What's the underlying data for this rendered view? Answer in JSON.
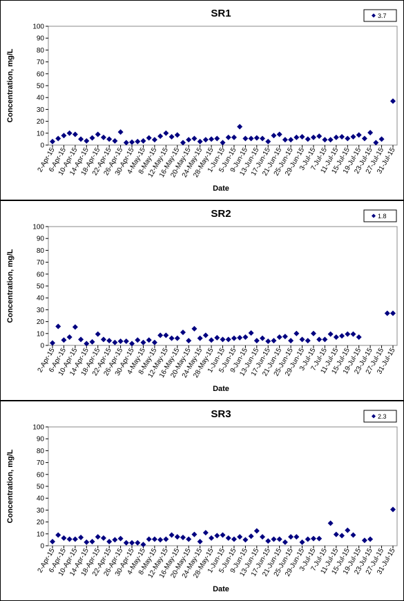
{
  "chart_data": [
    {
      "type": "scatter",
      "title": "SR1",
      "x_label": "Date",
      "y_label": "Concentration, mg/L",
      "x": [
        "2-Apr-15",
        "4-Apr-15",
        "6-Apr-15",
        "8-Apr-15",
        "10-Apr-15",
        "12-Apr-15",
        "14-Apr-15",
        "16-Apr-15",
        "18-Apr-15",
        "20-Apr-15",
        "22-Apr-15",
        "24-Apr-15",
        "26-Apr-15",
        "28-Apr-15",
        "30-Apr-15",
        "2-May-15",
        "4-May-15",
        "6-May-15",
        "8-May-15",
        "10-May-15",
        "12-May-15",
        "14-May-15",
        "16-May-15",
        "18-May-15",
        "20-May-15",
        "22-May-15",
        "24-May-15",
        "26-May-15",
        "28-May-15",
        "30-May-15",
        "1-Jun-15",
        "3-Jun-15",
        "5-Jun-15",
        "7-Jun-15",
        "9-Jun-15",
        "11-Jun-15",
        "13-Jun-15",
        "15-Jun-15",
        "17-Jun-15",
        "19-Jun-15",
        "21-Jun-15",
        "23-Jun-15",
        "25-Jun-15",
        "27-Jun-15",
        "29-Jun-15",
        "1-Jul-15",
        "3-Jul-15",
        "5-Jul-15",
        "7-Jul-15",
        "9-Jul-15",
        "11-Jul-15",
        "13-Jul-15",
        "15-Jul-15",
        "17-Jul-15",
        "19-Jul-15",
        "21-Jul-15",
        "23-Jul-15",
        "25-Jul-15",
        "27-Jul-15",
        "29-Jul-15",
        "31-Jul-15"
      ],
      "series": [
        {
          "name": "3.7",
          "color": "#000080",
          "values": [
            3,
            5.5,
            8,
            10,
            9,
            5,
            3.5,
            6,
            9,
            6.5,
            5,
            3.5,
            11,
            2,
            2.5,
            3,
            3.5,
            6,
            4.5,
            7.5,
            10,
            7,
            8.5,
            2,
            4.5,
            5.5,
            3,
            4.5,
            5,
            5.5,
            2,
            6.5,
            6.5,
            15.5,
            5.5,
            5.5,
            6,
            5.5,
            3,
            8,
            9,
            4.5,
            4.5,
            6.5,
            7,
            5,
            6.5,
            7.5,
            4.5,
            4.5,
            6.5,
            7,
            5.5,
            7,
            8.5,
            5.5,
            10.5,
            2,
            5,
            null,
            37
          ]
        }
      ],
      "xlim": [
        "2-Apr-15",
        "31-Jul-15"
      ],
      "ylim": [
        0,
        100
      ],
      "yticks": [
        0,
        10,
        20,
        30,
        40,
        50,
        60,
        70,
        80,
        90,
        100
      ],
      "xticks": [
        "2-Apr-15",
        "6-Apr-15",
        "10-Apr-15",
        "14-Apr-15",
        "18-Apr-15",
        "22-Apr-15",
        "26-Apr-15",
        "30-Apr-15",
        "4-May-15",
        "8-May-15",
        "12-May-15",
        "16-May-15",
        "20-May-15",
        "24-May-15",
        "28-May-15",
        "1-Jun-15",
        "5-Jun-15",
        "9-Jun-15",
        "13-Jun-15",
        "17-Jun-15",
        "21-Jun-15",
        "25-Jun-15",
        "29-Jun-15",
        "3-Jul-15",
        "7-Jul-15",
        "11-Jul-15",
        "15-Jul-15",
        "19-Jul-15",
        "23-Jul-15",
        "27-Jul-15",
        "31-Jul-15"
      ]
    },
    {
      "type": "scatter",
      "title": "SR2",
      "x_label": "Date",
      "y_label": "Concentration, mg/L",
      "x": [
        "2-Apr-15",
        "4-Apr-15",
        "6-Apr-15",
        "8-Apr-15",
        "10-Apr-15",
        "12-Apr-15",
        "14-Apr-15",
        "16-Apr-15",
        "18-Apr-15",
        "20-Apr-15",
        "22-Apr-15",
        "24-Apr-15",
        "26-Apr-15",
        "28-Apr-15",
        "30-Apr-15",
        "2-May-15",
        "4-May-15",
        "6-May-15",
        "8-May-15",
        "10-May-15",
        "12-May-15",
        "14-May-15",
        "16-May-15",
        "18-May-15",
        "20-May-15",
        "22-May-15",
        "24-May-15",
        "26-May-15",
        "28-May-15",
        "30-May-15",
        "1-Jun-15",
        "3-Jun-15",
        "5-Jun-15",
        "7-Jun-15",
        "9-Jun-15",
        "11-Jun-15",
        "13-Jun-15",
        "15-Jun-15",
        "17-Jun-15",
        "19-Jun-15",
        "21-Jun-15",
        "23-Jun-15",
        "25-Jun-15",
        "27-Jun-15",
        "29-Jun-15",
        "1-Jul-15",
        "3-Jul-15",
        "5-Jul-15",
        "7-Jul-15",
        "9-Jul-15",
        "11-Jul-15",
        "13-Jul-15",
        "15-Jul-15",
        "17-Jul-15",
        "19-Jul-15",
        "21-Jul-15",
        "23-Jul-15",
        "25-Jul-15",
        "27-Jul-15",
        "29-Jul-15",
        "31-Jul-15"
      ],
      "series": [
        {
          "name": "1.8",
          "color": "#000080",
          "values": [
            2,
            16,
            4.5,
            7,
            15.5,
            5,
            1.5,
            3,
            9.5,
            5,
            4,
            2.5,
            3.5,
            3.5,
            1.5,
            4.5,
            2.5,
            4.5,
            2.5,
            8.5,
            8.5,
            6,
            6,
            11,
            4,
            14,
            6,
            8.5,
            4.5,
            6.5,
            5,
            5,
            6,
            6.5,
            7,
            10.5,
            4,
            6,
            3.5,
            4,
            7,
            7.5,
            4,
            10,
            5,
            4,
            10,
            5,
            5,
            9.5,
            7,
            8,
            9.5,
            9.5,
            7,
            null,
            null,
            null,
            null,
            27,
            27
          ]
        }
      ],
      "xlim": [
        "2-Apr-15",
        "31-Jul-15"
      ],
      "ylim": [
        0,
        100
      ],
      "yticks": [
        0,
        10,
        20,
        30,
        40,
        50,
        60,
        70,
        80,
        90,
        100
      ],
      "xticks": [
        "2-Apr-15",
        "6-Apr-15",
        "10-Apr-15",
        "14-Apr-15",
        "18-Apr-15",
        "22-Apr-15",
        "26-Apr-15",
        "30-Apr-15",
        "4-May-15",
        "8-May-15",
        "12-May-15",
        "16-May-15",
        "20-May-15",
        "24-May-15",
        "28-May-15",
        "1-Jun-15",
        "5-Jun-15",
        "9-Jun-15",
        "13-Jun-15",
        "17-Jun-15",
        "21-Jun-15",
        "25-Jun-15",
        "29-Jun-15",
        "3-Jul-15",
        "7-Jul-15",
        "11-Jul-15",
        "15-Jul-15",
        "19-Jul-15",
        "23-Jul-15",
        "27-Jul-15",
        "31-Jul-15"
      ]
    },
    {
      "type": "scatter",
      "title": "SR3",
      "x_label": "Date",
      "y_label": "Concentration, mg/L",
      "x": [
        "2-Apr-15",
        "4-Apr-15",
        "6-Apr-15",
        "8-Apr-15",
        "10-Apr-15",
        "12-Apr-15",
        "14-Apr-15",
        "16-Apr-15",
        "18-Apr-15",
        "20-Apr-15",
        "22-Apr-15",
        "24-Apr-15",
        "26-Apr-15",
        "28-Apr-15",
        "30-Apr-15",
        "2-May-15",
        "4-May-15",
        "6-May-15",
        "8-May-15",
        "10-May-15",
        "12-May-15",
        "14-May-15",
        "16-May-15",
        "18-May-15",
        "20-May-15",
        "22-May-15",
        "24-May-15",
        "26-May-15",
        "28-May-15",
        "30-May-15",
        "1-Jun-15",
        "3-Jun-15",
        "5-Jun-15",
        "7-Jun-15",
        "9-Jun-15",
        "11-Jun-15",
        "13-Jun-15",
        "15-Jun-15",
        "17-Jun-15",
        "19-Jun-15",
        "21-Jun-15",
        "23-Jun-15",
        "25-Jun-15",
        "27-Jun-15",
        "29-Jun-15",
        "1-Jul-15",
        "3-Jul-15",
        "5-Jul-15",
        "7-Jul-15",
        "9-Jul-15",
        "11-Jul-15",
        "13-Jul-15",
        "15-Jul-15",
        "17-Jul-15",
        "19-Jul-15",
        "21-Jul-15",
        "23-Jul-15",
        "25-Jul-15",
        "27-Jul-15",
        "29-Jul-15",
        "31-Jul-15"
      ],
      "series": [
        {
          "name": "2.3",
          "color": "#000080",
          "values": [
            3.5,
            9,
            6.5,
            5.5,
            5.5,
            7,
            3,
            3.5,
            7.5,
            6.5,
            3.5,
            5,
            6,
            2.5,
            2.5,
            2.5,
            1,
            5.5,
            5.5,
            5,
            5.5,
            9,
            7.5,
            7,
            5.5,
            9.5,
            3.5,
            11,
            6.5,
            8.5,
            9,
            6.5,
            5.5,
            7.5,
            5,
            8,
            12.5,
            7.5,
            4,
            5.5,
            5.5,
            3,
            7.5,
            7.5,
            3,
            5.5,
            6,
            6,
            null,
            19,
            9.5,
            8.5,
            13,
            9,
            null,
            4.5,
            5.5,
            null,
            null,
            null,
            30.5
          ]
        }
      ],
      "xlim": [
        "2-Apr-15",
        "31-Jul-15"
      ],
      "ylim": [
        0,
        100
      ],
      "yticks": [
        0,
        10,
        20,
        30,
        40,
        50,
        60,
        70,
        80,
        90,
        100
      ],
      "xticks": [
        "2-Apr-15",
        "6-Apr-15",
        "10-Apr-15",
        "14-Apr-15",
        "18-Apr-15",
        "22-Apr-15",
        "26-Apr-15",
        "30-Apr-15",
        "4-May-15",
        "8-May-15",
        "12-May-15",
        "16-May-15",
        "20-May-15",
        "24-May-15",
        "28-May-15",
        "1-Jun-15",
        "5-Jun-15",
        "9-Jun-15",
        "13-Jun-15",
        "17-Jun-15",
        "21-Jun-15",
        "25-Jun-15",
        "29-Jun-15",
        "3-Jul-15",
        "7-Jul-15",
        "11-Jul-15",
        "15-Jul-15",
        "19-Jul-15",
        "23-Jul-15",
        "27-Jul-15",
        "31-Jul-15"
      ]
    }
  ]
}
